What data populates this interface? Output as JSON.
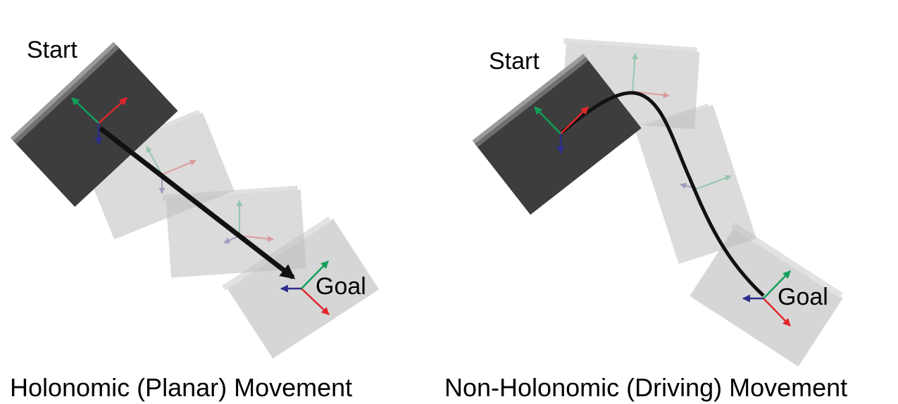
{
  "left_panel": {
    "start_label": "Start",
    "goal_label": "Goal",
    "caption": "Holonomic (Planar) Movement"
  },
  "right_panel": {
    "start_label": "Start",
    "goal_label": "Goal",
    "caption": "Non-Holonomic (Driving) Movement"
  },
  "colors": {
    "box_dark": "#3d3d3d",
    "box_ghost": "#bdbdbd",
    "path": "#111111",
    "axis_x": "#e0262b",
    "axis_y": "#12a05a",
    "axis_z": "#2e2e8c"
  }
}
